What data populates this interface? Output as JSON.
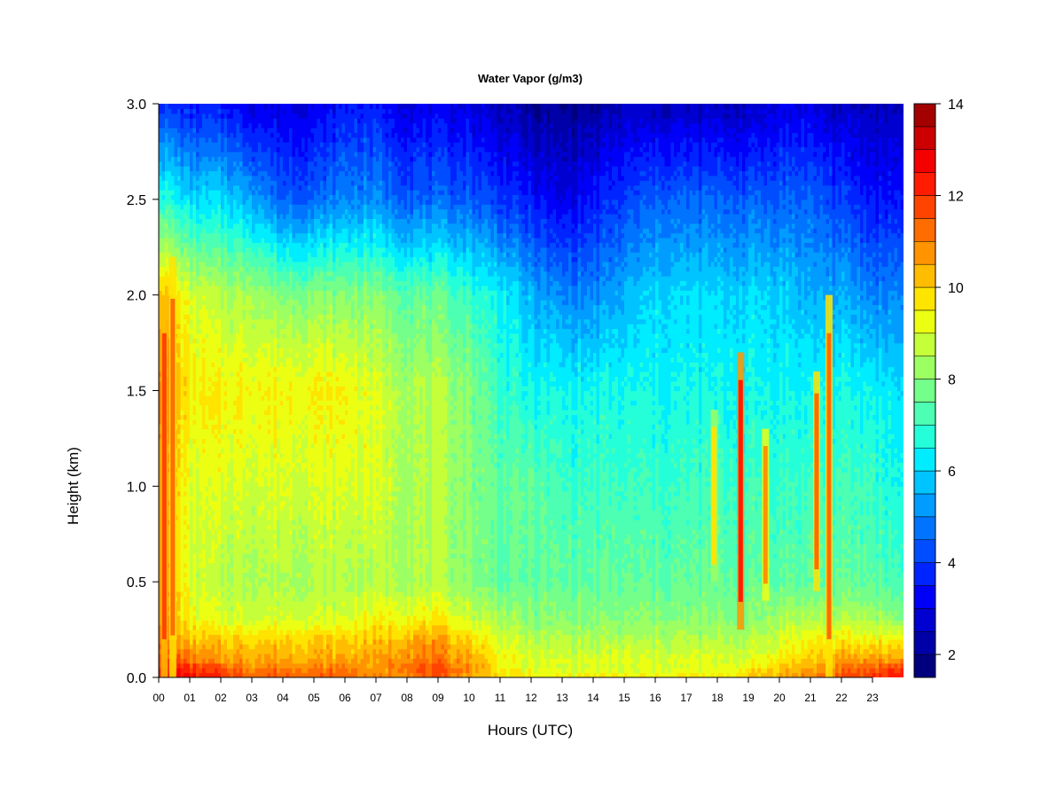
{
  "chart_data": {
    "type": "heatmap",
    "title": "Water Vapor (g/m3)",
    "xlabel": "Hours (UTC)",
    "ylabel": "Height (km)",
    "xlim": [
      0,
      24
    ],
    "ylim": [
      0.0,
      3.0
    ],
    "x_tick_labels": [
      "00",
      "01",
      "02",
      "03",
      "04",
      "05",
      "06",
      "07",
      "08",
      "09",
      "10",
      "11",
      "12",
      "13",
      "14",
      "15",
      "16",
      "17",
      "18",
      "19",
      "20",
      "21",
      "22",
      "23"
    ],
    "y_tick_labels": [
      "0.0",
      "0.5",
      "1.0",
      "1.5",
      "2.0",
      "2.5",
      "3.0"
    ],
    "y_tick_values": [
      0.0,
      0.5,
      1.0,
      1.5,
      2.0,
      2.5,
      3.0
    ],
    "colorbar": {
      "range": [
        1.5,
        14
      ],
      "tick_labels": [
        "2",
        "4",
        "6",
        "8",
        "10",
        "12",
        "14"
      ],
      "tick_values": [
        2,
        4,
        6,
        8,
        10,
        12,
        14
      ],
      "levels": [
        1.5,
        2,
        2.5,
        3,
        3.5,
        4,
        4.5,
        5,
        5.5,
        6,
        6.5,
        7,
        7.5,
        8,
        8.5,
        9,
        9.5,
        10,
        10.5,
        11,
        11.5,
        12,
        12.5,
        13,
        13.5,
        14
      ],
      "colors": [
        "#00007F",
        "#0000A8",
        "#0000D0",
        "#0000F8",
        "#0024FF",
        "#004CFF",
        "#0074FF",
        "#009CFF",
        "#00C4FF",
        "#00ECFF",
        "#24FFDA",
        "#4CFFB2",
        "#74FF8A",
        "#9CFF62",
        "#C4FF3A",
        "#ECFF12",
        "#FFE400",
        "#FFBC00",
        "#FF9400",
        "#FF6C00",
        "#FF4400",
        "#FF1C00",
        "#F40000",
        "#CC0000",
        "#A40000",
        "#7F0000"
      ]
    },
    "hours": [
      0,
      1,
      2,
      3,
      4,
      5,
      6,
      7,
      8,
      9,
      10,
      11,
      12,
      13,
      14,
      15,
      16,
      17,
      18,
      19,
      20,
      21,
      22,
      23,
      24
    ],
    "heights_km": [
      0.0,
      0.05,
      0.1,
      0.2,
      0.3,
      0.5,
      1.0,
      1.5,
      2.0,
      2.5,
      3.0
    ],
    "values": [
      [
        13.0,
        12.5,
        12.0,
        11.5,
        11.5,
        11.5,
        11.5,
        11.0,
        11.0,
        11.5,
        10.5,
        10.0,
        9.5,
        9.5,
        9.5,
        9.5,
        9.5,
        9.5,
        9.5,
        10.0,
        10.5,
        11.0,
        11.5,
        12.0,
        12.5
      ],
      [
        12.5,
        12.0,
        11.5,
        11.0,
        11.0,
        11.0,
        11.0,
        10.5,
        11.5,
        11.5,
        11.0,
        9.5,
        9.0,
        9.0,
        9.0,
        9.0,
        9.0,
        9.0,
        9.0,
        9.5,
        10.0,
        10.5,
        11.0,
        11.5,
        12.0
      ],
      [
        12.0,
        11.0,
        10.5,
        10.5,
        10.5,
        10.5,
        10.5,
        10.5,
        11.0,
        11.0,
        10.5,
        9.5,
        9.0,
        9.0,
        9.0,
        9.0,
        9.0,
        9.0,
        9.0,
        9.0,
        9.5,
        10.0,
        10.5,
        10.5,
        10.5
      ],
      [
        11.5,
        10.0,
        10.0,
        10.0,
        10.0,
        10.0,
        10.0,
        10.0,
        10.5,
        10.5,
        10.0,
        9.0,
        8.5,
        8.5,
        8.5,
        8.5,
        8.5,
        8.5,
        8.5,
        8.5,
        9.0,
        9.5,
        9.5,
        9.5,
        9.5
      ],
      [
        11.0,
        9.5,
        9.0,
        9.0,
        9.0,
        9.0,
        9.0,
        9.5,
        9.5,
        9.5,
        9.0,
        8.5,
        8.0,
        8.0,
        8.0,
        8.0,
        8.0,
        8.0,
        8.0,
        8.0,
        8.5,
        8.5,
        8.5,
        8.5,
        8.0
      ],
      [
        11.0,
        9.0,
        8.5,
        8.5,
        8.5,
        8.5,
        8.5,
        8.5,
        8.5,
        8.5,
        8.0,
        7.5,
        7.5,
        7.5,
        7.5,
        7.5,
        7.5,
        7.5,
        7.5,
        7.5,
        7.5,
        7.5,
        7.5,
        7.5,
        7.0
      ],
      [
        11.0,
        9.0,
        9.0,
        9.0,
        9.0,
        9.0,
        9.0,
        9.0,
        8.5,
        8.5,
        8.0,
        7.5,
        7.5,
        7.0,
        7.0,
        7.0,
        7.0,
        7.0,
        7.0,
        7.0,
        7.0,
        7.0,
        7.0,
        7.0,
        6.5
      ],
      [
        11.5,
        9.5,
        9.5,
        9.5,
        9.5,
        9.5,
        9.5,
        9.0,
        8.5,
        8.5,
        8.0,
        7.0,
        6.5,
        6.5,
        6.5,
        6.5,
        6.5,
        6.5,
        6.5,
        6.5,
        6.5,
        6.5,
        6.5,
        6.5,
        6.0
      ],
      [
        10.5,
        9.0,
        8.5,
        8.5,
        8.0,
        8.0,
        8.0,
        8.0,
        7.5,
        7.5,
        7.0,
        6.5,
        5.5,
        5.0,
        5.0,
        5.5,
        6.0,
        6.0,
        6.0,
        6.0,
        6.0,
        5.5,
        5.5,
        5.0,
        5.0
      ],
      [
        7.0,
        6.0,
        6.0,
        5.5,
        4.5,
        4.5,
        5.0,
        5.0,
        4.5,
        4.5,
        4.5,
        4.0,
        3.5,
        3.0,
        3.5,
        4.0,
        4.5,
        4.5,
        4.5,
        4.5,
        4.5,
        4.5,
        4.0,
        3.5,
        3.5
      ],
      [
        4.0,
        3.5,
        3.5,
        3.0,
        3.0,
        3.0,
        3.5,
        3.5,
        3.0,
        3.0,
        3.0,
        2.5,
        2.0,
        2.0,
        2.0,
        2.5,
        2.5,
        2.5,
        2.5,
        2.5,
        3.0,
        3.0,
        2.5,
        2.5,
        2.5
      ]
    ],
    "moist_plumes": [
      {
        "hour": 0.18,
        "height_range_km": [
          0.0,
          2.0
        ],
        "value": 11.5
      },
      {
        "hour": 0.45,
        "height_range_km": [
          0.0,
          2.2
        ],
        "value": 11.0
      },
      {
        "hour": 18.75,
        "height_range_km": [
          0.25,
          1.7
        ],
        "value": 12.0
      },
      {
        "hour": 19.55,
        "height_range_km": [
          0.4,
          1.3
        ],
        "value": 10.5
      },
      {
        "hour": 17.9,
        "height_range_km": [
          0.5,
          1.4
        ],
        "value": 9.5
      },
      {
        "hour": 21.2,
        "height_range_km": [
          0.45,
          1.6
        ],
        "value": 11.0
      },
      {
        "hour": 21.6,
        "height_range_km": [
          0.0,
          2.0
        ],
        "value": 11.0
      }
    ]
  }
}
